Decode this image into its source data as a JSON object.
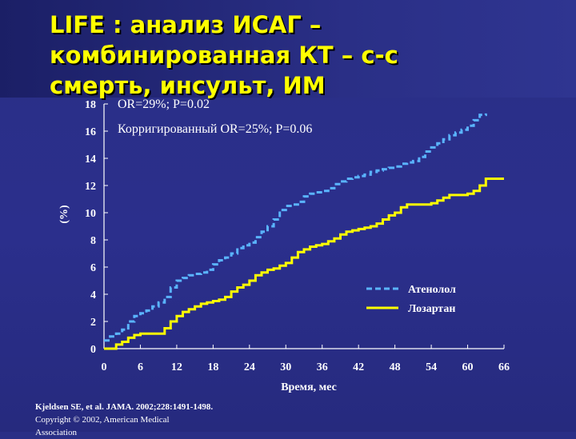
{
  "slide": {
    "title_lines": [
      "LIFE : анализ ИСАГ –",
      "комбинированная КТ – с-с",
      "смерть, инсульт, ИМ"
    ],
    "source": "Kjeldsen SE, et al. JAMA. 2002;228:1491-1498.",
    "copyright": "Copyright © 2002, American Medical",
    "copyright_2": "Association",
    "colors": {
      "background": "#2a2f86",
      "title": "#ffff00",
      "text": "#ffffff",
      "atenolol": "#5ab4ff",
      "losartan": "#ffff00"
    }
  },
  "chart_data": {
    "type": "line",
    "xlabel": "Время, мес",
    "ylabel": "(%)",
    "xlim": [
      0,
      66
    ],
    "ylim": [
      0,
      18
    ],
    "xticks": [
      0,
      6,
      12,
      18,
      24,
      30,
      36,
      42,
      48,
      54,
      60,
      66
    ],
    "yticks": [
      0,
      2,
      4,
      6,
      8,
      10,
      12,
      14,
      16,
      18
    ],
    "annotations": [
      "OR=29%; P=0.02",
      "Корригированный OR=25%; P=0.06"
    ],
    "legend_position": "lower-right",
    "series": [
      {
        "name": "Атенолол",
        "style": "dashed",
        "x": [
          0,
          1,
          2,
          3,
          4,
          5,
          6,
          7,
          8,
          9,
          10,
          11,
          12,
          13,
          14,
          15,
          16,
          17,
          18,
          19,
          20,
          21,
          22,
          23,
          24,
          25,
          26,
          27,
          28,
          29,
          30,
          31,
          32,
          33,
          34,
          35,
          36,
          37,
          38,
          39,
          40,
          41,
          42,
          43,
          44,
          45,
          46,
          47,
          48,
          49,
          50,
          51,
          52,
          53,
          54,
          55,
          56,
          57,
          58,
          59,
          60,
          61,
          62,
          63
        ],
        "y": [
          0.6,
          0.9,
          1.1,
          1.4,
          2.0,
          2.4,
          2.6,
          2.8,
          3.1,
          3.4,
          3.8,
          4.5,
          5.0,
          5.2,
          5.4,
          5.5,
          5.6,
          5.8,
          6.2,
          6.5,
          6.7,
          7.0,
          7.4,
          7.6,
          7.8,
          8.2,
          8.6,
          9.0,
          9.5,
          10.2,
          10.5,
          10.6,
          10.8,
          11.2,
          11.4,
          11.5,
          11.6,
          11.8,
          12.1,
          12.3,
          12.5,
          12.6,
          12.7,
          12.8,
          13.0,
          13.1,
          13.2,
          13.3,
          13.4,
          13.6,
          13.7,
          13.8,
          14.1,
          14.5,
          14.8,
          15.1,
          15.4,
          15.7,
          15.9,
          16.1,
          16.4,
          16.8,
          17.2,
          17.3
        ]
      },
      {
        "name": "Лозартан",
        "style": "solid",
        "x": [
          0,
          1,
          2,
          3,
          4,
          5,
          6,
          7,
          8,
          9,
          10,
          11,
          12,
          13,
          14,
          15,
          16,
          17,
          18,
          19,
          20,
          21,
          22,
          23,
          24,
          25,
          26,
          27,
          28,
          29,
          30,
          31,
          32,
          33,
          34,
          35,
          36,
          37,
          38,
          39,
          40,
          41,
          42,
          43,
          44,
          45,
          46,
          47,
          48,
          49,
          50,
          51,
          52,
          53,
          54,
          55,
          56,
          57,
          58,
          59,
          60,
          61,
          62,
          63,
          64,
          65,
          66
        ],
        "y": [
          0.0,
          0.0,
          0.3,
          0.5,
          0.8,
          1.0,
          1.1,
          1.1,
          1.1,
          1.1,
          1.5,
          2.0,
          2.4,
          2.7,
          2.9,
          3.1,
          3.3,
          3.4,
          3.5,
          3.6,
          3.8,
          4.2,
          4.5,
          4.7,
          5.0,
          5.4,
          5.6,
          5.8,
          5.9,
          6.1,
          6.3,
          6.7,
          7.1,
          7.3,
          7.5,
          7.6,
          7.7,
          7.9,
          8.1,
          8.4,
          8.6,
          8.7,
          8.8,
          8.9,
          9.0,
          9.2,
          9.5,
          9.8,
          10.0,
          10.4,
          10.6,
          10.6,
          10.6,
          10.6,
          10.7,
          10.9,
          11.1,
          11.3,
          11.3,
          11.3,
          11.4,
          11.6,
          12.0,
          12.5,
          12.5,
          12.5,
          12.5
        ]
      }
    ]
  }
}
